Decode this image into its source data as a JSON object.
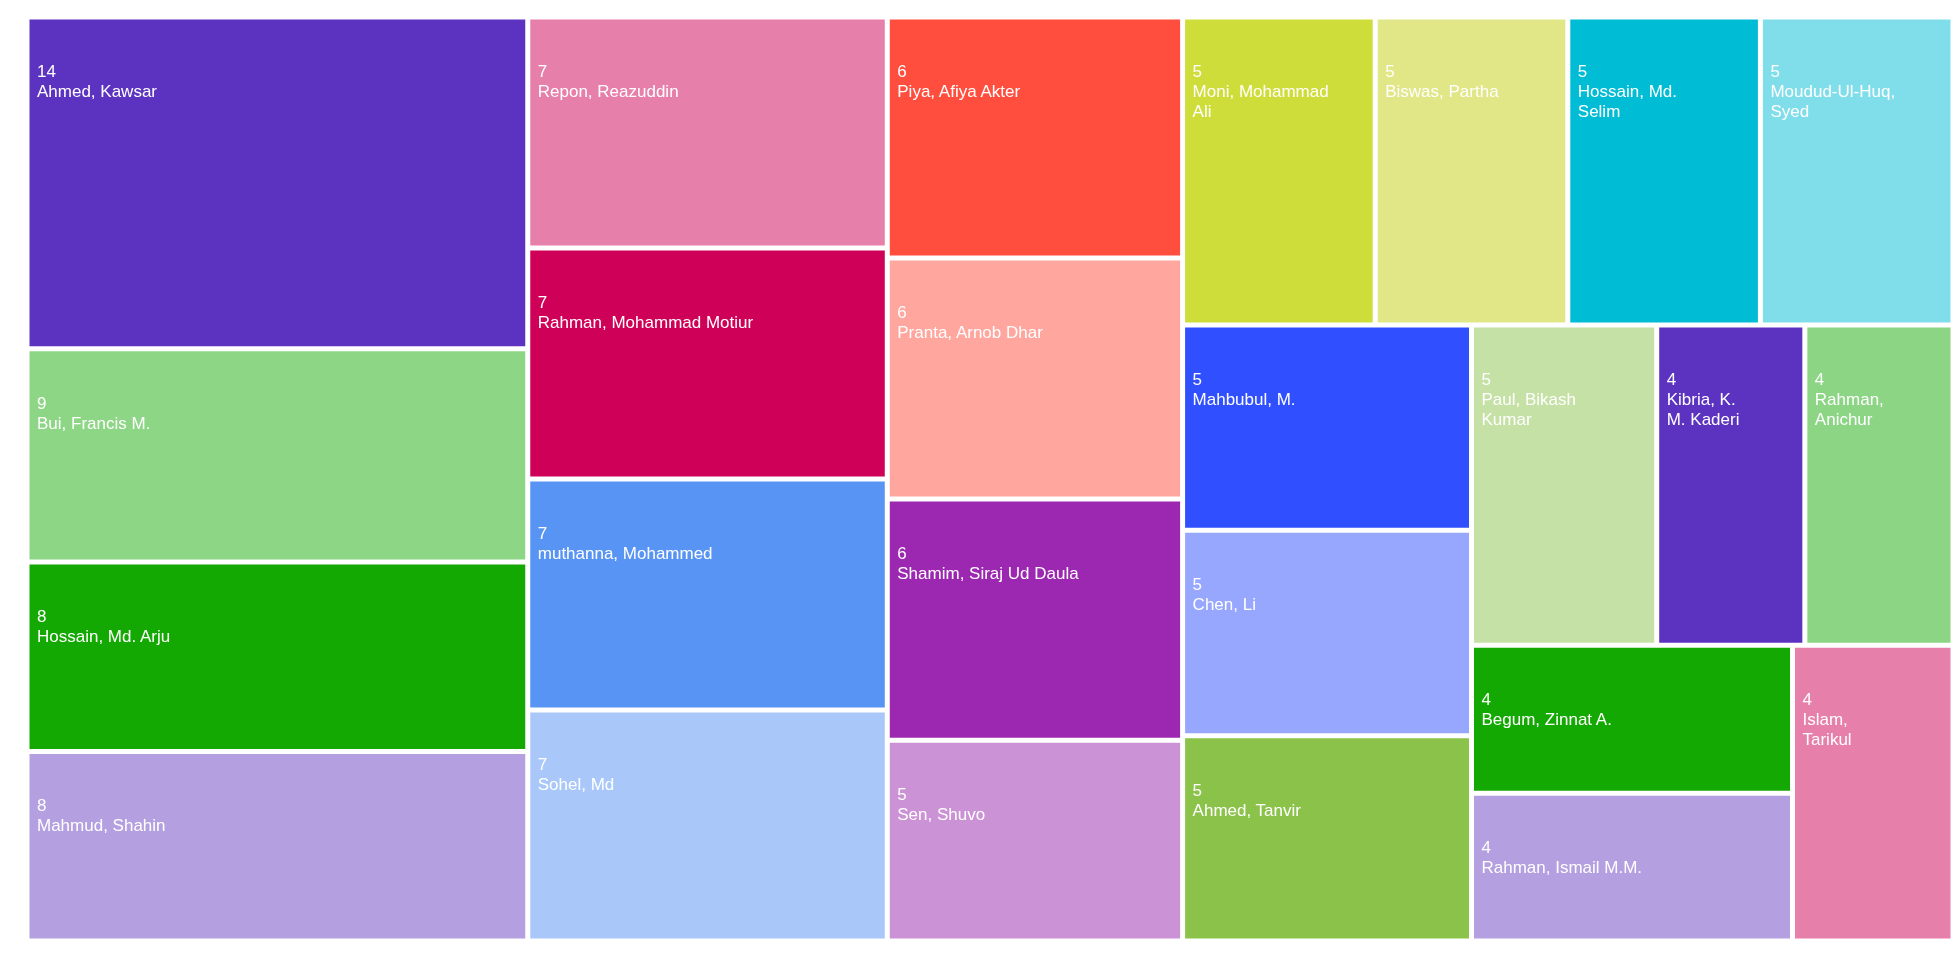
{
  "chart_data": {
    "type": "other",
    "data_labels": true,
    "categories": [
      "Ahmed, Kawsar",
      "Bui, Francis M.",
      "Hossain, Md. Arju",
      "Mahmud, Shahin",
      "Repon, Reazuddin",
      "Rahman, Mohammad Motiur",
      "muthanna, Mohammed",
      "Sohel, Md",
      "Piya, Afiya Akter",
      "Pranta, Arnob Dhar",
      "Shamim, Siraj Ud Daula",
      "Sen, Shuvo",
      "Moni, Mohammad Ali",
      "Biswas, Partha",
      "Hossain, Md. Selim",
      "Moudud-Ul-Huq, Syed",
      "Mahbubul, M.",
      "Chen, Li",
      "Ahmed, Tanvir",
      "Paul, Bikash Kumar",
      "Kibria, K. M. Kaderi",
      "Rahman, Anichur",
      "Begum, Zinnat A.",
      "Rahman, Ismail M.M.",
      "Islam, Tarikul"
    ],
    "values": [
      14,
      9,
      8,
      8,
      7,
      7,
      7,
      7,
      6,
      6,
      6,
      5,
      5,
      5,
      5,
      5,
      5,
      5,
      5,
      5,
      4,
      4,
      4,
      4,
      4
    ],
    "colors": [
      "#5c33c0",
      "#8dd685",
      "#13a802",
      "#b49fe0",
      "#e77fab",
      "#cf0057",
      "#5894f4",
      "#a9c8f9",
      "#ff4d3e",
      "#ffa69e",
      "#9c27b0",
      "#cb92d6",
      "#cfdd3a",
      "#e1e787",
      "#00bcd4",
      "#80deea",
      "#304ffe",
      "#97a7fe",
      "#8bc34a",
      "#c5e1a5",
      "#5c33c0",
      "#8bd585",
      "#13a802",
      "#b49fe0",
      "#e77fab"
    ]
  }
}
